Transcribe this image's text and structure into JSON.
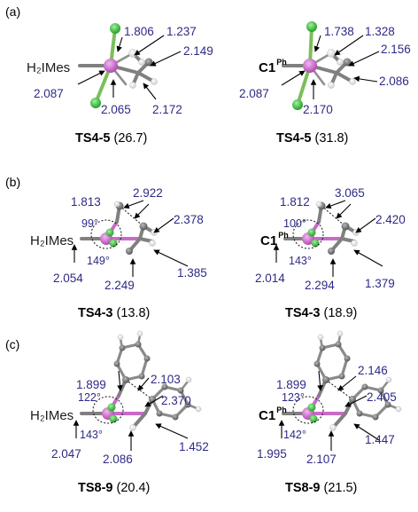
{
  "colors": {
    "ruthenium": "#c060c0",
    "chlorine": "#3cb83c",
    "carbon": "#808080",
    "hydrogen": "#f2f2f2",
    "measurement_text": "#2e2a86"
  },
  "panels": {
    "a": {
      "label": "(a)",
      "left": {
        "ligand": "H₂IMes",
        "measurements": [
          "1.806",
          "1.237",
          "2.149",
          "2.087",
          "2.065",
          "2.172"
        ],
        "caption_ts": "TS4-5",
        "caption_energy": "(26.7)"
      },
      "right": {
        "ligand_main": "C1",
        "ligand_sup": "Ph",
        "measurements": [
          "1.738",
          "1.328",
          "2.156",
          "2.086",
          "2.087",
          "2.170"
        ],
        "caption_ts": "TS4-5",
        "caption_energy": "(31.8)"
      }
    },
    "b": {
      "label": "(b)",
      "left": {
        "ligand": "H₂IMes",
        "measurements": [
          "1.813",
          "2.922",
          "2.378",
          "2.054",
          "2.249",
          "1.385"
        ],
        "angles": [
          "99°",
          "149°"
        ],
        "caption_ts": "TS4-3",
        "caption_energy": "(13.8)"
      },
      "right": {
        "ligand_main": "C1",
        "ligand_sup": "Ph",
        "measurements": [
          "1.812",
          "3.065",
          "2.420",
          "2.014",
          "2.294",
          "1.379"
        ],
        "angles": [
          "100°",
          "143°"
        ],
        "caption_ts": "TS4-3",
        "caption_energy": "(18.9)"
      }
    },
    "c": {
      "label": "(c)",
      "left": {
        "ligand": "H₂IMes",
        "measurements": [
          "1.899",
          "2.103",
          "2.370",
          "2.047",
          "2.086",
          "1.452"
        ],
        "angles": [
          "122°",
          "143°"
        ],
        "caption_ts": "TS8-9",
        "caption_energy": "(20.4)"
      },
      "right": {
        "ligand_main": "C1",
        "ligand_sup": "Ph",
        "measurements": [
          "1.899",
          "2.146",
          "2.405",
          "1.995",
          "2.107",
          "1.447"
        ],
        "angles": [
          "123°",
          "142°"
        ],
        "caption_ts": "TS8-9",
        "caption_energy": "(21.5)"
      }
    }
  }
}
